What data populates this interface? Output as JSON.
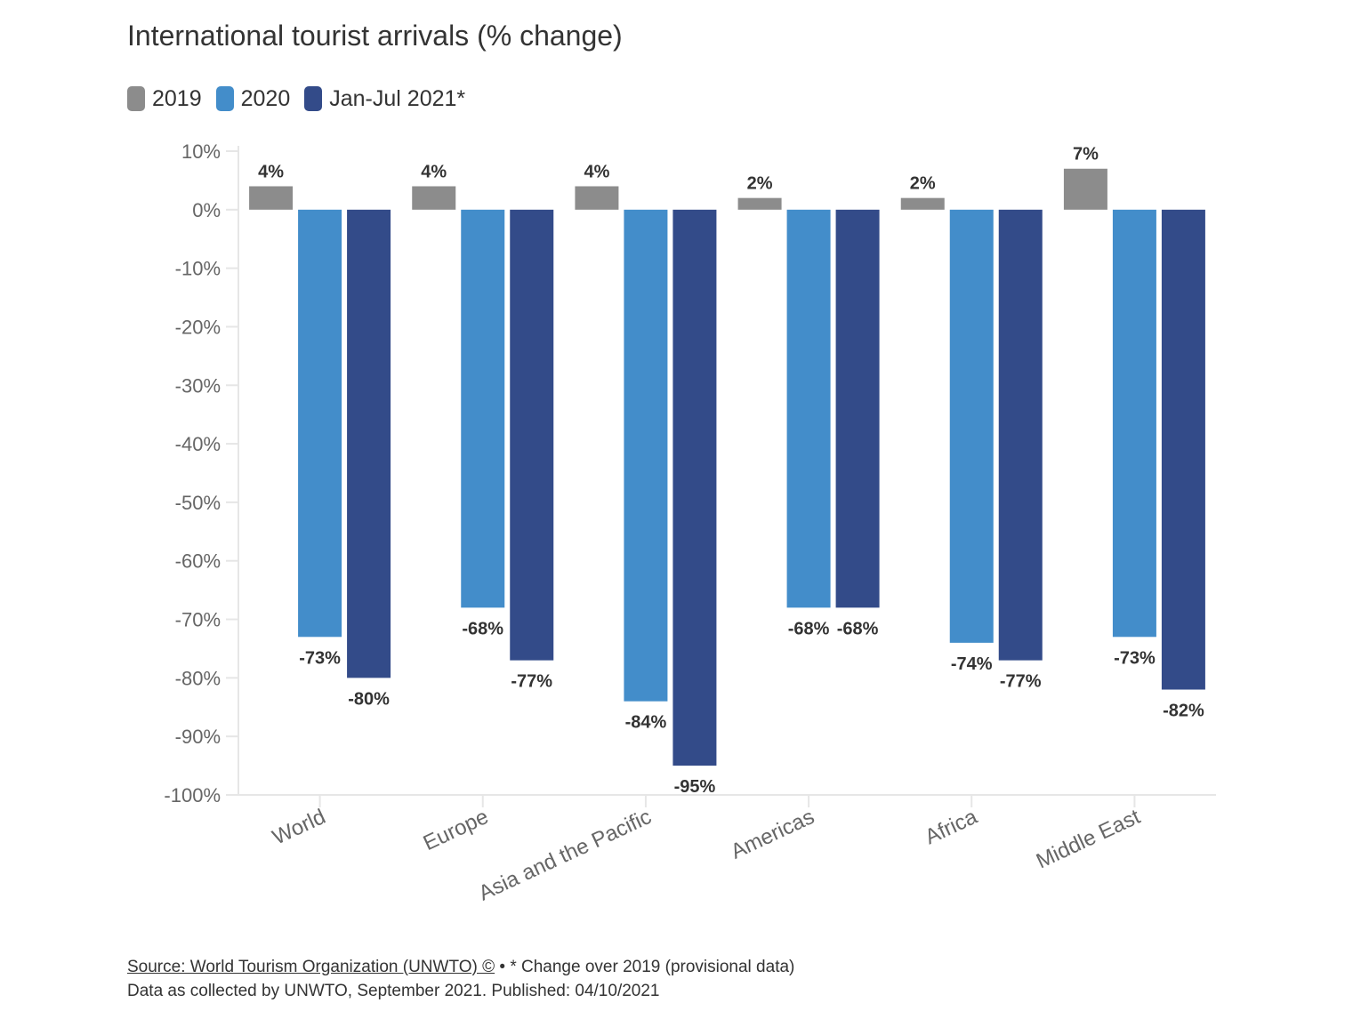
{
  "chart_data": {
    "type": "bar",
    "title": "International tourist arrivals (% change)",
    "categories": [
      "World",
      "Europe",
      "Asia and the Pacific",
      "Americas",
      "Africa",
      "Middle East"
    ],
    "series": [
      {
        "name": "2019",
        "color": "#8c8c8c",
        "values": [
          4,
          4,
          4,
          2,
          2,
          7
        ],
        "labels": [
          "4%",
          "4%",
          "4%",
          "2%",
          "2%",
          "7%"
        ]
      },
      {
        "name": "2020",
        "color": "#438dca",
        "values": [
          -73,
          -68,
          -84,
          -68,
          -74,
          -73
        ],
        "labels": [
          "-73%",
          "-68%",
          "-84%",
          "-68%",
          "-74%",
          "-73%"
        ]
      },
      {
        "name": "Jan-Jul 2021*",
        "color": "#334b89",
        "values": [
          -80,
          -77,
          -95,
          -68,
          -77,
          -82
        ],
        "labels": [
          "-80%",
          "-77%",
          "-95%",
          "-68%",
          "-77%",
          "-82%"
        ]
      }
    ],
    "ylim": [
      -100,
      10
    ],
    "yticks": [
      10,
      0,
      -10,
      -20,
      -30,
      -40,
      -50,
      -60,
      -70,
      -80,
      -90,
      -100
    ],
    "ytick_labels": [
      "10%",
      "0%",
      "-10%",
      "-20%",
      "-30%",
      "-40%",
      "-50%",
      "-60%",
      "-70%",
      "-80%",
      "-90%",
      "-100%"
    ],
    "xlabel": "",
    "ylabel": "",
    "legend_position": "top-left",
    "grid": false
  },
  "footer": {
    "source_link": "Source: World Tourism Organization (UNWTO) ©",
    "note": " • * Change over 2019 (provisional data)",
    "line2": "Data as collected by UNWTO, September 2021. Published: 04/10/2021"
  }
}
